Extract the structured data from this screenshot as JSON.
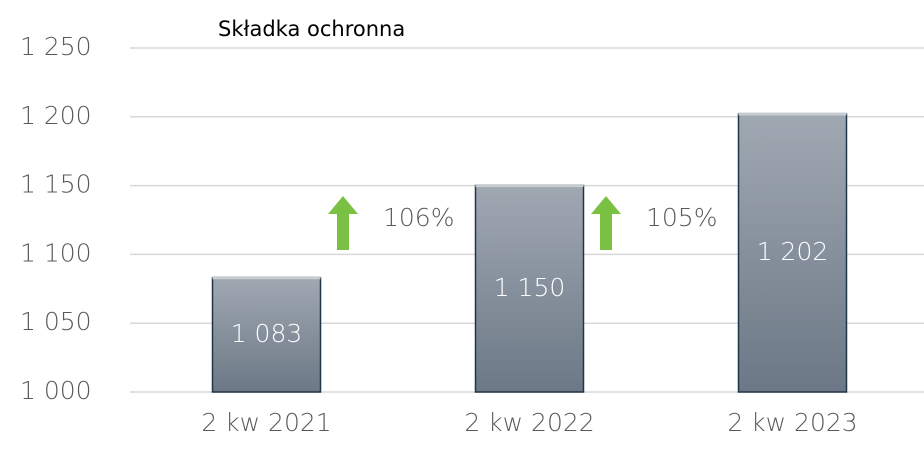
{
  "chart_data": {
    "type": "bar",
    "title": "Składka ochronna",
    "categories": [
      "2 kw 2021",
      "2 kw 2022",
      "2 kw 2023"
    ],
    "values": [
      1083,
      1150,
      1202
    ],
    "value_labels": [
      "1 083",
      "1 150",
      "1 202"
    ],
    "color": "#7f8a96",
    "ylim": [
      1000,
      1250
    ],
    "yticks": [
      {
        "value": 1000,
        "label": "1 000"
      },
      {
        "value": 1050,
        "label": "1 050"
      },
      {
        "value": 1100,
        "label": "1 100"
      },
      {
        "value": 1150,
        "label": "1 150"
      },
      {
        "value": 1200,
        "label": "1 200"
      },
      {
        "value": 1250,
        "label": "1 250"
      }
    ],
    "grid": true,
    "annotations": [
      "106%",
      "105%"
    ]
  }
}
